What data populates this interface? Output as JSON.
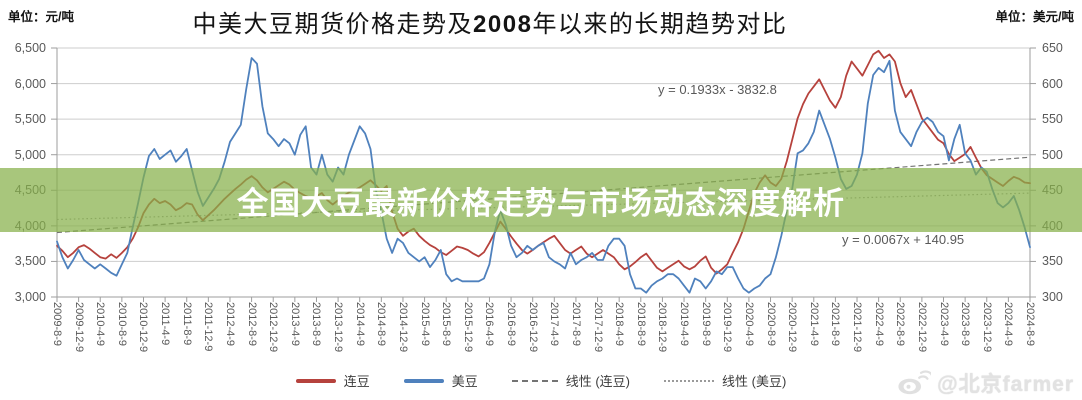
{
  "header": {
    "unit_left": "单位：元/吨",
    "unit_right": "单位：美元/吨",
    "title_part1": "中美大豆期货价格走势及",
    "title_year": "2008",
    "title_part2": "年以来的长期趋势对比"
  },
  "overlay_banner": {
    "text": "全国大豆最新价格走势与市场动态深度解析",
    "background_color": "#86b04a",
    "text_color": "#ffffff"
  },
  "annotations": {
    "trend_dalian_equation": "y = 0.1933x - 3832.8",
    "trend_us_equation": "y = 0.0067x + 140.95"
  },
  "watermark": {
    "icon": "weibo-icon",
    "text": "@北京farmer"
  },
  "legend": [
    {
      "label": "连豆",
      "swatch": "solid",
      "color": "#b6423d"
    },
    {
      "label": "美豆",
      "swatch": "solid",
      "color": "#4f81bd"
    },
    {
      "label": "线性 (连豆)",
      "swatch": "dashed",
      "color": "#737373"
    },
    {
      "label": "线性 (美豆)",
      "swatch": "dotted",
      "color": "#9a9a9a"
    }
  ],
  "chart_data": {
    "type": "line",
    "title": "中美大豆期货价格走势及2008年以来的长期趋势对比",
    "x_description": "每月一点，2009-08 至 2024-08",
    "x_tick_labels": [
      "2009-8-9",
      "2009-12-9",
      "2010-4-9",
      "2010-8-9",
      "2010-12-9",
      "2011-4-9",
      "2011-8-9",
      "2011-12-9",
      "2012-4-9",
      "2012-8-9",
      "2012-12-9",
      "2013-4-9",
      "2013-8-9",
      "2013-12-9",
      "2014-4-9",
      "2014-8-9",
      "2014-12-9",
      "2015-4-9",
      "2015-8-9",
      "2015-12-9",
      "2016-4-9",
      "2016-8-9",
      "2016-12-9",
      "2017-4-9",
      "2017-8-9",
      "2017-12-9",
      "2018-4-9",
      "2018-8-9",
      "2018-12-9",
      "2019-4-9",
      "2019-8-9",
      "2019-12-9",
      "2020-4-9",
      "2020-8-9",
      "2020-12-9",
      "2021-4-9",
      "2021-8-9",
      "2021-12-9",
      "2022-4-9",
      "2022-8-9",
      "2022-12-9",
      "2023-4-9",
      "2023-8-9",
      "2023-12-9",
      "2024-4-9",
      "2024-8-9"
    ],
    "y_left": {
      "unit": "元/吨",
      "min": 3000,
      "max": 6500,
      "ticks": [
        3000,
        3500,
        4000,
        4500,
        5000,
        5500,
        6000,
        6500
      ],
      "tick_labels": [
        "3,000",
        "3,500",
        "4,000",
        "4,500",
        "5,000",
        "5,500",
        "6,000",
        "6,500"
      ]
    },
    "y_right": {
      "unit": "美元/吨",
      "min": 300,
      "max": 650,
      "ticks": [
        300,
        350,
        400,
        450,
        500,
        550,
        600,
        650
      ],
      "tick_labels": [
        "300",
        "350",
        "400",
        "450",
        "500",
        "550",
        "600",
        "650"
      ]
    },
    "grid": true,
    "legend_position": "bottom",
    "series": [
      {
        "name": "连豆",
        "axis": "left",
        "color": "#b6423d",
        "values": [
          3720,
          3650,
          3560,
          3620,
          3700,
          3730,
          3680,
          3620,
          3560,
          3540,
          3600,
          3550,
          3620,
          3700,
          3820,
          3980,
          4180,
          4300,
          4380,
          4320,
          4350,
          4300,
          4220,
          4260,
          4320,
          4300,
          4160,
          4080,
          4150,
          4220,
          4300,
          4380,
          4450,
          4520,
          4580,
          4650,
          4700,
          4640,
          4540,
          4470,
          4520,
          4570,
          4620,
          4580,
          4510,
          4460,
          4420,
          4390,
          4420,
          4460,
          4360,
          4300,
          4360,
          4420,
          4470,
          4500,
          4540,
          4590,
          4640,
          4570,
          4490,
          4560,
          4200,
          3960,
          3860,
          3920,
          3960,
          3860,
          3790,
          3730,
          3690,
          3630,
          3590,
          3650,
          3710,
          3690,
          3660,
          3610,
          3570,
          3630,
          3760,
          3910,
          4060,
          3960,
          3850,
          3750,
          3660,
          3610,
          3660,
          3720,
          3770,
          3820,
          3860,
          3760,
          3660,
          3610,
          3660,
          3710,
          3610,
          3560,
          3610,
          3660,
          3610,
          3560,
          3460,
          3390,
          3430,
          3490,
          3560,
          3610,
          3510,
          3410,
          3360,
          3410,
          3460,
          3510,
          3430,
          3390,
          3430,
          3510,
          3570,
          3410,
          3330,
          3390,
          3460,
          3620,
          3770,
          3960,
          4210,
          4460,
          4610,
          4710,
          4610,
          4560,
          4660,
          4910,
          5210,
          5510,
          5710,
          5860,
          5960,
          6060,
          5910,
          5760,
          5660,
          5810,
          6110,
          6310,
          6210,
          6110,
          6260,
          6410,
          6460,
          6360,
          6410,
          6310,
          6010,
          5810,
          5910,
          5710,
          5510,
          5410,
          5310,
          5210,
          5160,
          5010,
          4910,
          4960,
          5010,
          5110,
          4960,
          4810,
          4710,
          4660,
          4610,
          4560,
          4630,
          4690,
          4660,
          4610,
          4600
        ]
      },
      {
        "name": "美豆",
        "axis": "right",
        "color": "#4f81bd",
        "values": [
          378,
          356,
          340,
          352,
          366,
          352,
          346,
          340,
          346,
          340,
          334,
          330,
          346,
          362,
          398,
          432,
          468,
          498,
          508,
          494,
          500,
          506,
          490,
          498,
          508,
          478,
          448,
          428,
          440,
          452,
          466,
          490,
          518,
          530,
          542,
          592,
          636,
          628,
          568,
          530,
          522,
          512,
          522,
          516,
          500,
          528,
          540,
          482,
          472,
          500,
          472,
          462,
          482,
          472,
          500,
          520,
          540,
          530,
          508,
          450,
          420,
          382,
          362,
          382,
          376,
          362,
          356,
          350,
          356,
          342,
          352,
          366,
          332,
          322,
          326,
          322,
          322,
          322,
          322,
          326,
          346,
          392,
          422,
          402,
          372,
          356,
          362,
          372,
          366,
          372,
          376,
          356,
          350,
          346,
          340,
          362,
          346,
          352,
          356,
          362,
          352,
          352,
          372,
          382,
          382,
          372,
          332,
          312,
          312,
          306,
          316,
          322,
          326,
          332,
          332,
          326,
          316,
          306,
          326,
          322,
          312,
          322,
          336,
          332,
          342,
          342,
          326,
          312,
          306,
          312,
          316,
          326,
          332,
          356,
          386,
          422,
          452,
          502,
          506,
          516,
          532,
          562,
          542,
          522,
          496,
          466,
          452,
          456,
          472,
          502,
          572,
          612,
          622,
          616,
          632,
          562,
          532,
          522,
          512,
          532,
          546,
          552,
          546,
          532,
          526,
          492,
          522,
          542,
          502,
          492,
          472,
          482,
          476,
          452,
          432,
          426,
          432,
          442,
          422,
          398,
          370
        ]
      }
    ],
    "trend_lines": [
      {
        "name": "线性 (连豆)",
        "axis": "left",
        "equation": "y = 0.1933x - 3832.8",
        "start_value": 3906,
        "end_value": 4965,
        "style": "dashed",
        "color": "#737373"
      },
      {
        "name": "线性 (美豆)",
        "axis": "right",
        "equation": "y = 0.0067x + 140.95",
        "start_value": 409,
        "end_value": 446,
        "style": "dotted",
        "color": "#9a9a9a"
      }
    ]
  }
}
